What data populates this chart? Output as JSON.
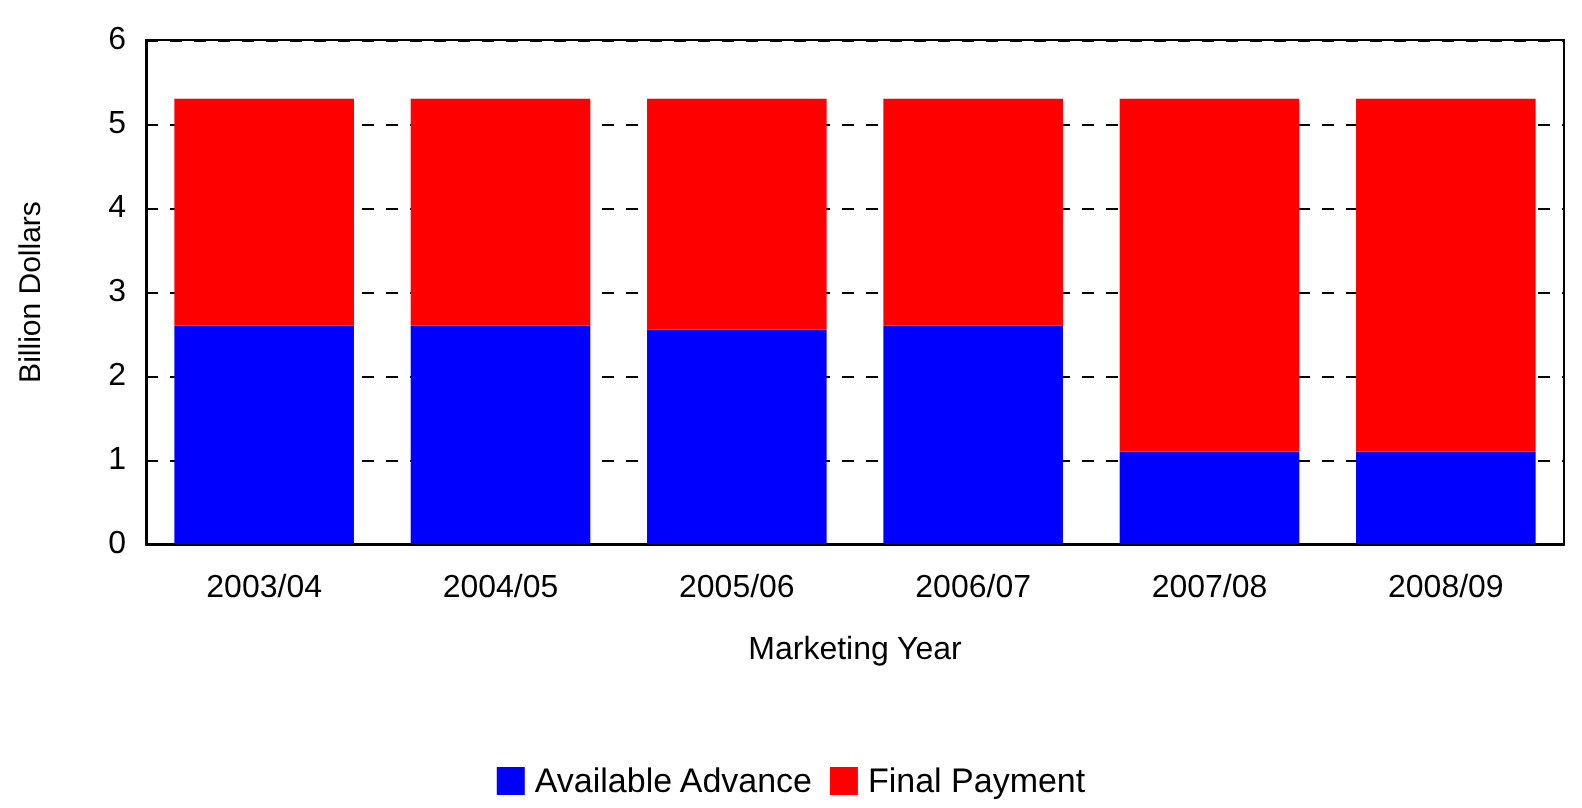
{
  "chart_data": {
    "type": "bar",
    "stacked": true,
    "xlabel": "Marketing Year",
    "ylabel": "Billion Dollars",
    "categories": [
      "2003/04",
      "2004/05",
      "2005/06",
      "2006/07",
      "2007/08",
      "2008/09"
    ],
    "series": [
      {
        "name": "Available Advance",
        "color": "#0000ff",
        "values": [
          2.6,
          2.6,
          2.55,
          2.6,
          1.1,
          1.1
        ]
      },
      {
        "name": "Final Payment",
        "color": "#ff0000",
        "values": [
          2.7,
          2.7,
          2.75,
          2.7,
          4.2,
          4.2
        ]
      }
    ],
    "ylim": [
      0,
      6
    ],
    "yticks": [
      0,
      1,
      2,
      3,
      4,
      5,
      6
    ],
    "grid": "y",
    "legend": "bottom"
  }
}
